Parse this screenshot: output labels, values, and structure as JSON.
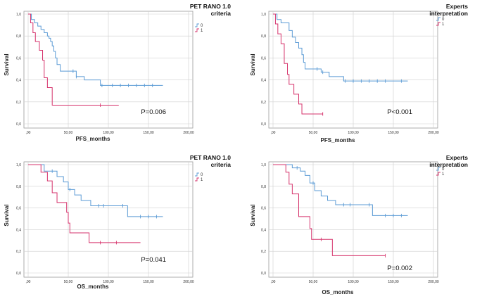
{
  "chart_data": [
    {
      "type": "line",
      "title_lines": [
        "PET RANO 1.0",
        "criteria"
      ],
      "xlabel": "PFS_months",
      "ylabel": "Survival",
      "xlim": [
        0,
        200
      ],
      "ylim": [
        0,
        1
      ],
      "x_ticks": [
        ",00",
        "50,00",
        "100,00",
        "150,00",
        "200,00"
      ],
      "y_ticks": [
        "0,0",
        "0,2",
        "0,4",
        "0,6",
        "0,8",
        "1,0"
      ],
      "grid": true,
      "legend_position": "top-right",
      "p_value": "P=0.006",
      "series": [
        {
          "name": "0",
          "color": "#5b9bd5",
          "x": [
            0,
            4,
            8,
            12,
            16,
            20,
            24,
            26,
            28,
            30,
            32,
            34,
            36,
            40,
            50,
            60,
            70,
            78,
            90,
            168
          ],
          "y": [
            1.0,
            0.95,
            0.92,
            0.89,
            0.86,
            0.83,
            0.8,
            0.78,
            0.75,
            0.71,
            0.66,
            0.6,
            0.54,
            0.48,
            0.48,
            0.43,
            0.4,
            0.4,
            0.35,
            0.35
          ],
          "censor_x": [
            56,
            60,
            92,
            105,
            115,
            125,
            135,
            145,
            155
          ]
        },
        {
          "name": "1",
          "color": "#d6336c",
          "x": [
            0,
            3,
            6,
            9,
            14,
            18,
            20,
            24,
            30,
            113
          ],
          "y": [
            1.0,
            0.92,
            0.83,
            0.75,
            0.67,
            0.58,
            0.42,
            0.33,
            0.17,
            0.17
          ],
          "censor_x": [
            90
          ]
        }
      ]
    },
    {
      "type": "line",
      "title_lines": [
        "Experts",
        "interpretation"
      ],
      "xlabel": "PFS_months",
      "ylabel": "Survival",
      "xlim": [
        0,
        200
      ],
      "ylim": [
        0,
        1
      ],
      "x_ticks": [
        ",00",
        "50,00",
        "100,00",
        "150,00",
        "200,00"
      ],
      "y_ticks": [
        "0,0",
        "0,2",
        "0,4",
        "0,6",
        "0,8",
        "1,0"
      ],
      "grid": true,
      "legend_position": "top-right",
      "p_value": "P<0.001",
      "series": [
        {
          "name": "0",
          "color": "#5b9bd5",
          "x": [
            0,
            5,
            10,
            20,
            24,
            28,
            32,
            36,
            38,
            40,
            44,
            60,
            70,
            88,
            168
          ],
          "y": [
            1.0,
            0.95,
            0.92,
            0.85,
            0.79,
            0.74,
            0.69,
            0.63,
            0.56,
            0.5,
            0.5,
            0.47,
            0.43,
            0.39,
            0.39
          ],
          "censor_x": [
            55,
            62,
            90,
            100,
            110,
            120,
            130,
            140,
            160
          ]
        },
        {
          "name": "1",
          "color": "#d6336c",
          "x": [
            0,
            3,
            6,
            10,
            14,
            18,
            20,
            26,
            32,
            36,
            62
          ],
          "y": [
            1.0,
            0.91,
            0.82,
            0.73,
            0.55,
            0.45,
            0.36,
            0.27,
            0.18,
            0.09,
            0.09
          ],
          "censor_x": [
            62
          ]
        }
      ]
    },
    {
      "type": "line",
      "title_lines": [
        "PET RANO 1.0",
        "criteria"
      ],
      "xlabel": "OS_months",
      "ylabel": "Survival",
      "xlim": [
        0,
        200
      ],
      "ylim": [
        0,
        1
      ],
      "x_ticks": [
        ",00",
        "50,00",
        "100,00",
        "150,00",
        "200,00"
      ],
      "y_ticks": [
        "0,0",
        "0,2",
        "0,4",
        "0,6",
        "0,8",
        "1,0"
      ],
      "grid": true,
      "legend_position": "top-right",
      "p_value": "P=0.041",
      "series": [
        {
          "name": "0",
          "color": "#5b9bd5",
          "x": [
            0,
            20,
            36,
            44,
            50,
            58,
            66,
            78,
            86,
            124,
            168
          ],
          "y": [
            1.0,
            0.94,
            0.89,
            0.84,
            0.77,
            0.72,
            0.67,
            0.62,
            0.62,
            0.52,
            0.52
          ],
          "censor_x": [
            30,
            52,
            88,
            94,
            118,
            140,
            150,
            160
          ]
        },
        {
          "name": "1",
          "color": "#d6336c",
          "x": [
            0,
            16,
            24,
            30,
            36,
            48,
            50,
            52,
            76,
            140
          ],
          "y": [
            1.0,
            0.93,
            0.85,
            0.74,
            0.65,
            0.56,
            0.46,
            0.37,
            0.28,
            0.28
          ],
          "censor_x": [
            90,
            110
          ]
        }
      ]
    },
    {
      "type": "line",
      "title_lines": [
        "Experts",
        "interpretation"
      ],
      "xlabel": "OS_months",
      "ylabel": "Survival",
      "xlim": [
        0,
        200
      ],
      "ylim": [
        0,
        1
      ],
      "x_ticks": [
        ",00",
        "50,00",
        "100,00",
        "150,00",
        "200,00"
      ],
      "y_ticks": [
        "0,0",
        "0,2",
        "0,4",
        "0,6",
        "0,8",
        "1,0"
      ],
      "grid": true,
      "legend_position": "top-right",
      "p_value": "P=0.002",
      "series": [
        {
          "name": "0",
          "color": "#5b9bd5",
          "x": [
            0,
            24,
            34,
            40,
            46,
            52,
            60,
            68,
            78,
            85,
            124,
            168
          ],
          "y": [
            1.0,
            0.97,
            0.94,
            0.9,
            0.83,
            0.76,
            0.71,
            0.67,
            0.63,
            0.63,
            0.53,
            0.53
          ],
          "censor_x": [
            30,
            50,
            88,
            96,
            120,
            140,
            150,
            160
          ]
        },
        {
          "name": "1",
          "color": "#d6336c",
          "x": [
            0,
            16,
            20,
            24,
            32,
            46,
            48,
            50,
            74,
            140
          ],
          "y": [
            1.0,
            0.93,
            0.82,
            0.73,
            0.52,
            0.41,
            0.31,
            0.31,
            0.16,
            0.16
          ],
          "censor_x": [
            60,
            140
          ]
        }
      ]
    }
  ]
}
